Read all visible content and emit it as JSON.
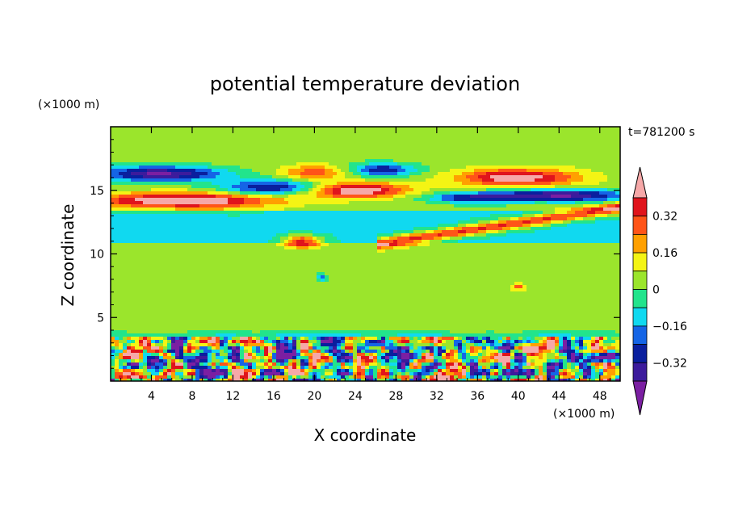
{
  "chart_data": {
    "type": "heatmap",
    "title": "potential temperature deviation",
    "xlabel": "X coordinate",
    "ylabel": "Z coordinate",
    "x_units": "(×1000 m)",
    "y_units": "(×1000 m)",
    "time_label": "t=781200 s",
    "xlim": [
      0,
      50
    ],
    "ylim": [
      0,
      20
    ],
    "x_ticks": [
      4,
      8,
      12,
      16,
      20,
      24,
      28,
      32,
      36,
      40,
      44,
      48
    ],
    "y_ticks": [
      5,
      10,
      15
    ],
    "colorbar": {
      "levels": [
        -0.4,
        -0.32,
        -0.24,
        -0.16,
        -0.08,
        0,
        0.08,
        0.16,
        0.24,
        0.32,
        0.4
      ],
      "tick_values": [
        0.32,
        0.16,
        0,
        -0.16,
        -0.32
      ],
      "tick_labels": [
        "0.32",
        "0.16",
        "0",
        "−0.16",
        "−0.32"
      ],
      "colors": [
        "#7b1fa2",
        "#3c1b9c",
        "#0a1f9e",
        "#1565e6",
        "#10d9f0",
        "#22e48c",
        "#9be52c",
        "#f4f414",
        "#ffa000",
        "#ff5418",
        "#e0141c",
        "#f6a8a8"
      ]
    },
    "features": [
      {
        "kind": "layer",
        "zmin": 0,
        "zmax": 3.6,
        "desc": "turbulent boundary layer, alternating warm/cold blobs"
      },
      {
        "kind": "band",
        "zmin": 11,
        "zmax": 13,
        "value": -0.1
      },
      {
        "kind": "band",
        "zmin": 13,
        "zmax": 17.5,
        "desc": "wavy warm and cold filaments"
      },
      {
        "kind": "band",
        "zmin": 4,
        "zmax": 11,
        "value": 0.05
      }
    ]
  }
}
